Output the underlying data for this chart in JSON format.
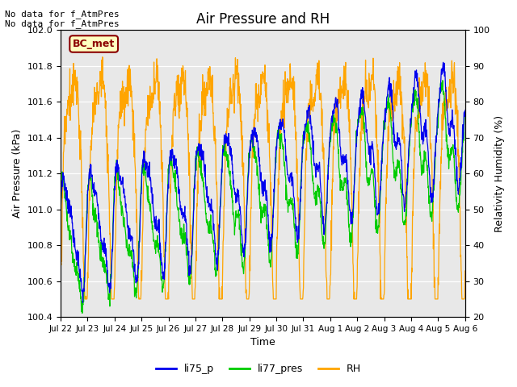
{
  "title": "Air Pressure and RH",
  "xlabel": "Time",
  "ylabel_left": "Air Pressure (kPa)",
  "ylabel_right": "Relativity Humidity (%)",
  "ylim_left": [
    100.4,
    102.0
  ],
  "ylim_right": [
    20,
    100
  ],
  "annotation1": "No data for f_AtmPres",
  "annotation2": "No data for f_AtmPres",
  "box_label": "BC_met",
  "box_facecolor": "#FFFFC0",
  "box_edgecolor": "#8B0000",
  "box_textcolor": "#8B0000",
  "bg_color": "#E8E8E8",
  "fig_color": "#FFFFFF",
  "line_blue": "#0000EE",
  "line_green": "#00CC00",
  "line_orange": "#FFA500",
  "legend_labels": [
    "li75_p",
    "li77_pres",
    "RH"
  ],
  "xtick_labels": [
    "Jul 22",
    "Jul 23",
    "Jul 24",
    "Jul 25",
    "Jul 26",
    "Jul 27",
    "Jul 28",
    "Jul 29",
    "Jul 30",
    "Jul 31",
    "Aug 1",
    "Aug 2",
    "Aug 3",
    "Aug 4",
    "Aug 5",
    "Aug 6"
  ],
  "yticks_left": [
    100.4,
    100.6,
    100.8,
    101.0,
    101.2,
    101.4,
    101.6,
    101.8,
    102.0
  ],
  "yticks_right": [
    20,
    30,
    40,
    50,
    60,
    70,
    80,
    90,
    100
  ],
  "n_points": 1440,
  "seed": 7
}
